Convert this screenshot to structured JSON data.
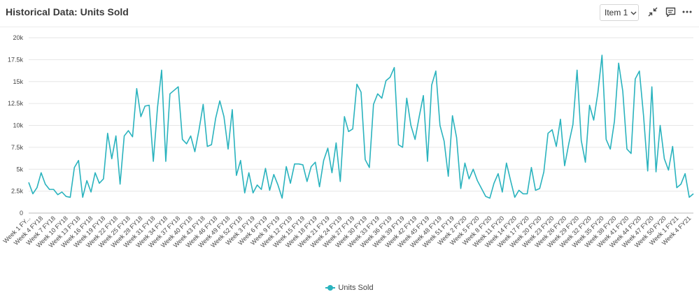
{
  "header": {
    "title": "Historical Data: Units Sold",
    "item_selector": "Item 1",
    "icons": [
      "collapse-icon",
      "comment-icon",
      "more-icon"
    ]
  },
  "colors": {
    "series": "#2ab3be",
    "grid": "#e6e6e6"
  },
  "chart_data": {
    "type": "line",
    "title": "Historical Data: Units Sold",
    "xlabel": "",
    "ylabel": "",
    "ylim": [
      0,
      20000
    ],
    "y_ticks": [
      0,
      2500,
      5000,
      7500,
      10000,
      12500,
      15000,
      17500,
      20000
    ],
    "y_tick_labels": [
      "0",
      "2.5k",
      "5k",
      "7.5k",
      "10k",
      "12.5k",
      "15k",
      "17.5k",
      "20k"
    ],
    "grid": true,
    "legend": "bottom",
    "x": [
      "Week 1 FY18",
      "Week 2 FY18",
      "Week 3 FY18",
      "Week 4 FY18",
      "Week 5 FY18",
      "Week 6 FY18",
      "Week 7 FY18",
      "Week 8 FY18",
      "Week 9 FY18",
      "Week 10 FY18",
      "Week 11 FY18",
      "Week 12 FY18",
      "Week 13 FY18",
      "Week 14 FY18",
      "Week 15 FY18",
      "Week 16 FY18",
      "Week 17 FY18",
      "Week 18 FY18",
      "Week 19 FY18",
      "Week 20 FY18",
      "Week 21 FY18",
      "Week 22 FY18",
      "Week 23 FY18",
      "Week 24 FY18",
      "Week 25 FY18",
      "Week 26 FY18",
      "Week 27 FY18",
      "Week 28 FY18",
      "Week 29 FY18",
      "Week 30 FY18",
      "Week 31 FY18",
      "Week 32 FY18",
      "Week 33 FY18",
      "Week 34 FY18",
      "Week 35 FY18",
      "Week 36 FY18",
      "Week 37 FY18",
      "Week 38 FY18",
      "Week 39 FY18",
      "Week 40 FY18",
      "Week 41 FY18",
      "Week 42 FY18",
      "Week 43 FY18",
      "Week 44 FY18",
      "Week 45 FY18",
      "Week 46 FY18",
      "Week 47 FY18",
      "Week 48 FY18",
      "Week 49 FY18",
      "Week 50 FY18",
      "Week 51 FY18",
      "Week 52 FY18",
      "Week 1 FY19",
      "Week 2 FY19",
      "Week 3 FY19",
      "Week 4 FY19",
      "Week 5 FY19",
      "Week 6 FY19",
      "Week 7 FY19",
      "Week 8 FY19",
      "Week 9 FY19",
      "Week 10 FY19",
      "Week 11 FY19",
      "Week 12 FY19",
      "Week 13 FY19",
      "Week 14 FY19",
      "Week 15 FY19",
      "Week 16 FY19",
      "Week 17 FY19",
      "Week 18 FY19",
      "Week 19 FY19",
      "Week 20 FY19",
      "Week 21 FY19",
      "Week 22 FY19",
      "Week 23 FY19",
      "Week 24 FY19",
      "Week 25 FY19",
      "Week 26 FY19",
      "Week 27 FY19",
      "Week 28 FY19",
      "Week 29 FY19",
      "Week 30 FY19",
      "Week 31 FY19",
      "Week 32 FY19",
      "Week 33 FY19",
      "Week 34 FY19",
      "Week 35 FY19",
      "Week 36 FY19",
      "Week 37 FY19",
      "Week 38 FY19",
      "Week 39 FY19",
      "Week 40 FY19",
      "Week 41 FY19",
      "Week 42 FY19",
      "Week 43 FY19",
      "Week 44 FY19",
      "Week 45 FY19",
      "Week 46 FY19",
      "Week 47 FY19",
      "Week 48 FY19",
      "Week 49 FY19",
      "Week 50 FY19",
      "Week 51 FY19",
      "Week 52 FY19",
      "Week 1 FY20",
      "Week 2 FY20",
      "Week 3 FY20",
      "Week 4 FY20",
      "Week 5 FY20",
      "Week 6 FY20",
      "Week 7 FY20",
      "Week 8 FY20",
      "Week 9 FY20",
      "Week 10 FY20",
      "Week 11 FY20",
      "Week 12 FY20",
      "Week 13 FY20",
      "Week 14 FY20",
      "Week 15 FY20",
      "Week 16 FY20",
      "Week 17 FY20",
      "Week 18 FY20",
      "Week 19 FY20",
      "Week 20 FY20",
      "Week 21 FY20",
      "Week 22 FY20",
      "Week 23 FY20",
      "Week 24 FY20",
      "Week 25 FY20",
      "Week 26 FY20",
      "Week 27 FY20",
      "Week 28 FY20",
      "Week 29 FY20",
      "Week 30 FY20",
      "Week 31 FY20",
      "Week 32 FY20",
      "Week 33 FY20",
      "Week 34 FY20",
      "Week 35 FY20",
      "Week 36 FY20",
      "Week 37 FY20",
      "Week 38 FY20",
      "Week 39 FY20",
      "Week 40 FY20",
      "Week 41 FY20",
      "Week 42 FY20",
      "Week 43 FY20",
      "Week 44 FY20",
      "Week 45 FY20",
      "Week 46 FY20",
      "Week 47 FY20",
      "Week 48 FY20",
      "Week 49 FY20",
      "Week 50 FY20",
      "Week 51 FY20",
      "Week 52 FY20",
      "Week 1 FY21",
      "Week 2 FY21",
      "Week 3 FY21",
      "Week 4 FY21",
      "Week 5 FY21"
    ],
    "x_tick_labels": [
      "Week 1 FY...",
      "Week 4 FY18",
      "Week 7 FY18",
      "Week 10 FY18",
      "Week 13 FY18",
      "Week 16 FY18",
      "Week 19 FY18",
      "Week 22 FY18",
      "Week 25 FY18",
      "Week 28 FY18",
      "Week 31 FY18",
      "Week 34 FY18",
      "Week 37 FY18",
      "Week 40 FY18",
      "Week 43 FY18",
      "Week 46 FY18",
      "Week 49 FY18",
      "Week 52 FY18",
      "Week 3 FY19",
      "Week 6 FY19",
      "Week 9 FY19",
      "Week 12 FY19",
      "Week 15 FY19",
      "Week 18 FY19",
      "Week 21 FY19",
      "Week 24 FY19",
      "Week 27 FY19",
      "Week 30 FY19",
      "Week 33 FY19",
      "Week 36 FY19",
      "Week 39 FY19",
      "Week 42 FY19",
      "Week 45 FY19",
      "Week 48 FY19",
      "Week 51 FY19",
      "Week 2 FY20",
      "Week 5 FY20",
      "Week 8 FY20",
      "Week 11 FY20",
      "Week 14 FY20",
      "Week 17 FY20",
      "Week 20 FY20",
      "Week 23 FY20",
      "Week 26 FY20",
      "Week 29 FY20",
      "Week 32 FY20",
      "Week 35 FY20",
      "Week 38 FY20",
      "Week 41 FY20",
      "Week 44 FY20",
      "Week 47 FY20",
      "Week 50 FY20",
      "Week 1 FY21",
      "Week 4 FY21"
    ],
    "series": [
      {
        "name": "Units Sold",
        "values": [
          3500,
          2200,
          2900,
          4600,
          3300,
          2700,
          2700,
          2100,
          2400,
          1900,
          1800,
          5200,
          6000,
          1800,
          3700,
          2400,
          4600,
          3400,
          3900,
          9100,
          6200,
          8800,
          3300,
          8800,
          9400,
          8700,
          14200,
          11000,
          12200,
          12300,
          5900,
          12000,
          16300,
          5900,
          13600,
          14000,
          14400,
          8400,
          7900,
          8800,
          7000,
          9500,
          12400,
          7600,
          7800,
          10800,
          12800,
          11000,
          7300,
          11800,
          4300,
          6000,
          2300,
          4600,
          2300,
          3200,
          2700,
          5100,
          2600,
          4400,
          3200,
          1700,
          5300,
          3400,
          5600,
          5600,
          5500,
          3600,
          5300,
          5800,
          3000,
          6000,
          7400,
          4600,
          8000,
          3600,
          11000,
          9300,
          9600,
          14700,
          13800,
          6100,
          5200,
          12400,
          13600,
          13100,
          15100,
          15500,
          16600,
          7800,
          7500,
          13100,
          10000,
          8400,
          11000,
          13400,
          5900,
          14600,
          16200,
          10000,
          8200,
          4200,
          11100,
          8600,
          2800,
          5700,
          3900,
          5000,
          3700,
          2800,
          1900,
          1700,
          3400,
          4500,
          2400,
          5700,
          3700,
          1800,
          2600,
          2200,
          2200,
          5200,
          2600,
          2800,
          4700,
          9100,
          9500,
          7600,
          10700,
          5400,
          7900,
          10100,
          16300,
          8300,
          5800,
          12300,
          10600,
          13700,
          18000,
          8400,
          7300,
          10500,
          17100,
          13900,
          7300,
          6800,
          15300,
          16200,
          11100,
          4800,
          14400,
          4700,
          10000,
          6200,
          4900,
          7600,
          2900,
          3300,
          4500,
          1800,
          2200
        ]
      }
    ]
  }
}
